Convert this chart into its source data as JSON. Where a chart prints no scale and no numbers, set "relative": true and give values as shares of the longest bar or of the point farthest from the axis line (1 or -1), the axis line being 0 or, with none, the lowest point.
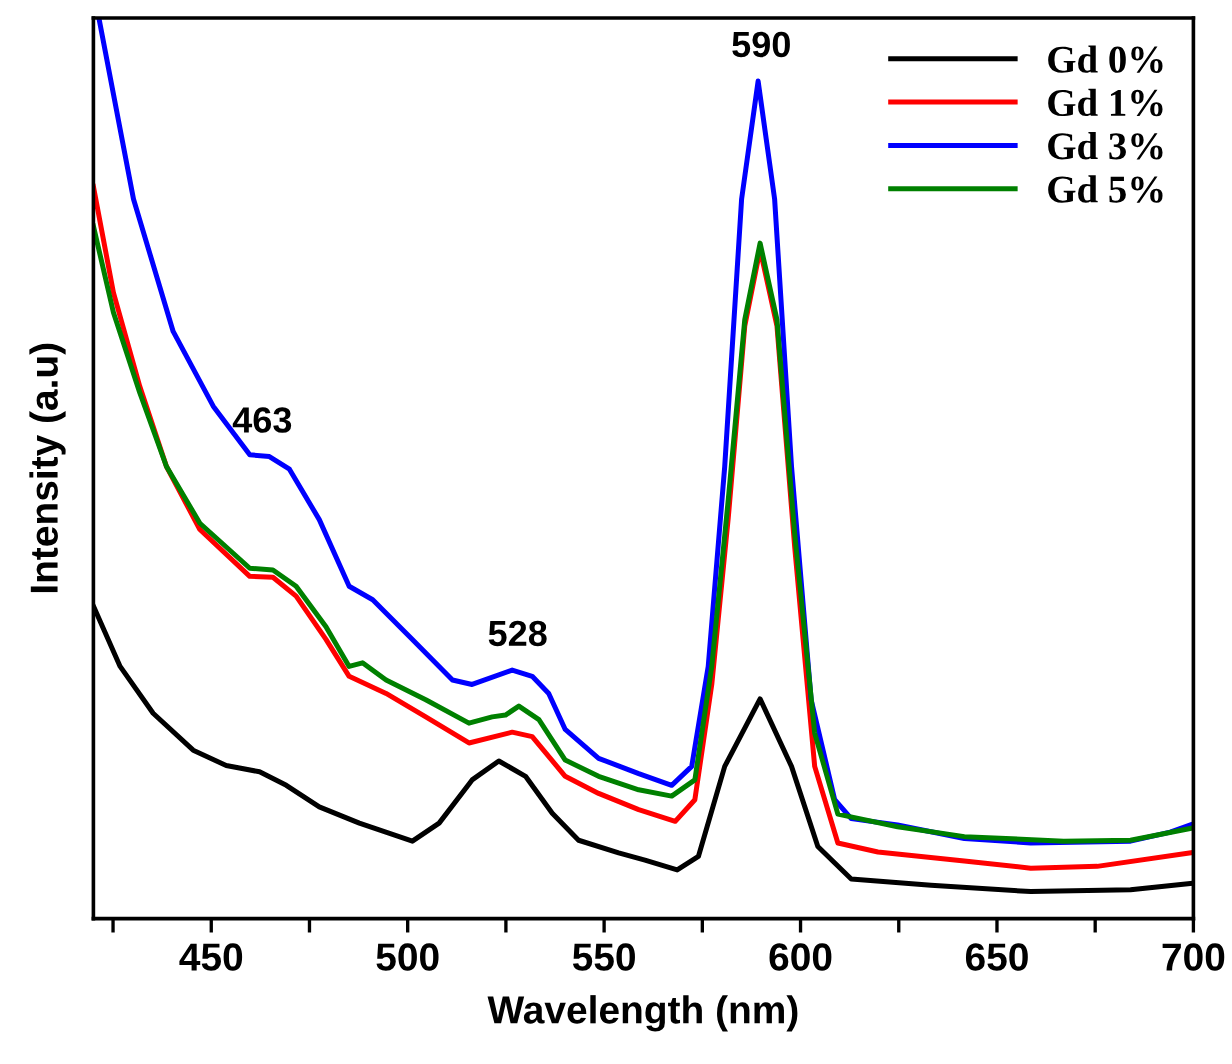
{
  "chart_data": {
    "type": "line",
    "relative": true,
    "xlabel": "Wavelength (nm)",
    "ylabel": "Intensity (a.u)",
    "xlim": [
      420,
      700
    ],
    "xticks": [
      {
        "value": 425,
        "label": null
      },
      450,
      {
        "value": 475,
        "label": null
      },
      500,
      {
        "value": 525,
        "label": null
      },
      550,
      {
        "value": 575,
        "label": null
      },
      600,
      {
        "value": 625,
        "label": null
      },
      650,
      {
        "value": 675,
        "label": null
      },
      700
    ],
    "grid": false,
    "legend": "top right",
    "tick_labels": "x",
    "line_style": "solid",
    "marker": "none",
    "annotations": [
      {
        "text": "463",
        "x": 463,
        "y": 0.513
      },
      {
        "text": "528",
        "x": 528,
        "y": 0.276
      },
      {
        "text": "590",
        "x": 590,
        "y": 0.93
      }
    ],
    "series": [
      {
        "name": "Gd 0%",
        "color": "#000000",
        "x": [
          420,
          426.8,
          435.2,
          445.4,
          453.8,
          462.3,
          469.1,
          477.5,
          487.7,
          501.2,
          508.0,
          516.4,
          523.2,
          530.0,
          536.8,
          543.5,
          553.7,
          560.4,
          568.6,
          574.0,
          580.7,
          589.7,
          597.7,
          604.4,
          612.9,
          633.2,
          658.6,
          684.0,
          699.2
        ],
        "values": [
          0.347,
          0.28,
          0.228,
          0.187,
          0.17,
          0.163,
          0.148,
          0.124,
          0.106,
          0.086,
          0.106,
          0.154,
          0.175,
          0.158,
          0.117,
          0.087,
          0.073,
          0.065,
          0.054,
          0.069,
          0.169,
          0.244,
          0.169,
          0.08,
          0.044,
          0.037,
          0.03,
          0.032,
          0.039
        ]
      },
      {
        "name": "Gd 1%",
        "color": "#ff0000",
        "x": [
          420,
          425.1,
          431.8,
          438.6,
          447.1,
          459.8,
          465.7,
          471.6,
          479.2,
          485.1,
          494.5,
          504.6,
          515.6,
          526.6,
          531.7,
          540.1,
          548.6,
          558.8,
          568.1,
          573.1,
          577.4,
          581.6,
          585.8,
          589.7,
          594.0,
          598.5,
          603.6,
          609.5,
          619.7,
          641.7,
          658.6,
          675.5,
          699.2
        ],
        "values": [
          0.813,
          0.695,
          0.591,
          0.502,
          0.432,
          0.38,
          0.379,
          0.358,
          0.31,
          0.269,
          0.25,
          0.224,
          0.195,
          0.207,
          0.202,
          0.158,
          0.139,
          0.121,
          0.108,
          0.132,
          0.26,
          0.445,
          0.658,
          0.743,
          0.658,
          0.413,
          0.169,
          0.084,
          0.074,
          0.064,
          0.056,
          0.058,
          0.073
        ]
      },
      {
        "name": "Gd 3%",
        "color": "#0000ff",
        "x": [
          421.4,
          430.2,
          440.3,
          450.5,
          459.8,
          464.8,
          469.9,
          477.5,
          485.1,
          491.1,
          501.2,
          511.4,
          516.4,
          526.6,
          531.7,
          535.9,
          540.1,
          548.6,
          558.8,
          567.2,
          572.3,
          576.5,
          580.7,
          585.0,
          589.2,
          593.4,
          597.7,
          602.7,
          608.7,
          612.9,
          624.7,
          641.7,
          658.6,
          684.0,
          694.1,
          699.2
        ],
        "values": [
          1.0,
          0.799,
          0.652,
          0.569,
          0.515,
          0.513,
          0.499,
          0.443,
          0.369,
          0.354,
          0.31,
          0.265,
          0.26,
          0.276,
          0.269,
          0.25,
          0.21,
          0.178,
          0.161,
          0.148,
          0.169,
          0.28,
          0.502,
          0.799,
          0.93,
          0.799,
          0.502,
          0.243,
          0.132,
          0.111,
          0.104,
          0.089,
          0.084,
          0.086,
          0.096,
          0.104
        ]
      },
      {
        "name": "Gd 5%",
        "color": "#008000",
        "x": [
          420,
          425.1,
          431.8,
          438.6,
          447.1,
          459.8,
          465.7,
          471.6,
          479.2,
          485.1,
          488.5,
          494.5,
          504.6,
          515.6,
          521.5,
          524.9,
          528.3,
          533.4,
          540.1,
          548.6,
          558.8,
          567.2,
          573.1,
          577.4,
          581.6,
          585.8,
          589.7,
          594.0,
          598.5,
          603.6,
          609.5,
          624.7,
          641.7,
          667.0,
          684.0,
          699.2
        ],
        "values": [
          0.769,
          0.673,
          0.584,
          0.502,
          0.439,
          0.389,
          0.387,
          0.369,
          0.324,
          0.28,
          0.284,
          0.265,
          0.243,
          0.217,
          0.224,
          0.226,
          0.236,
          0.221,
          0.176,
          0.158,
          0.143,
          0.136,
          0.154,
          0.28,
          0.465,
          0.665,
          0.75,
          0.665,
          0.428,
          0.206,
          0.116,
          0.102,
          0.091,
          0.086,
          0.087,
          0.1
        ]
      }
    ]
  }
}
